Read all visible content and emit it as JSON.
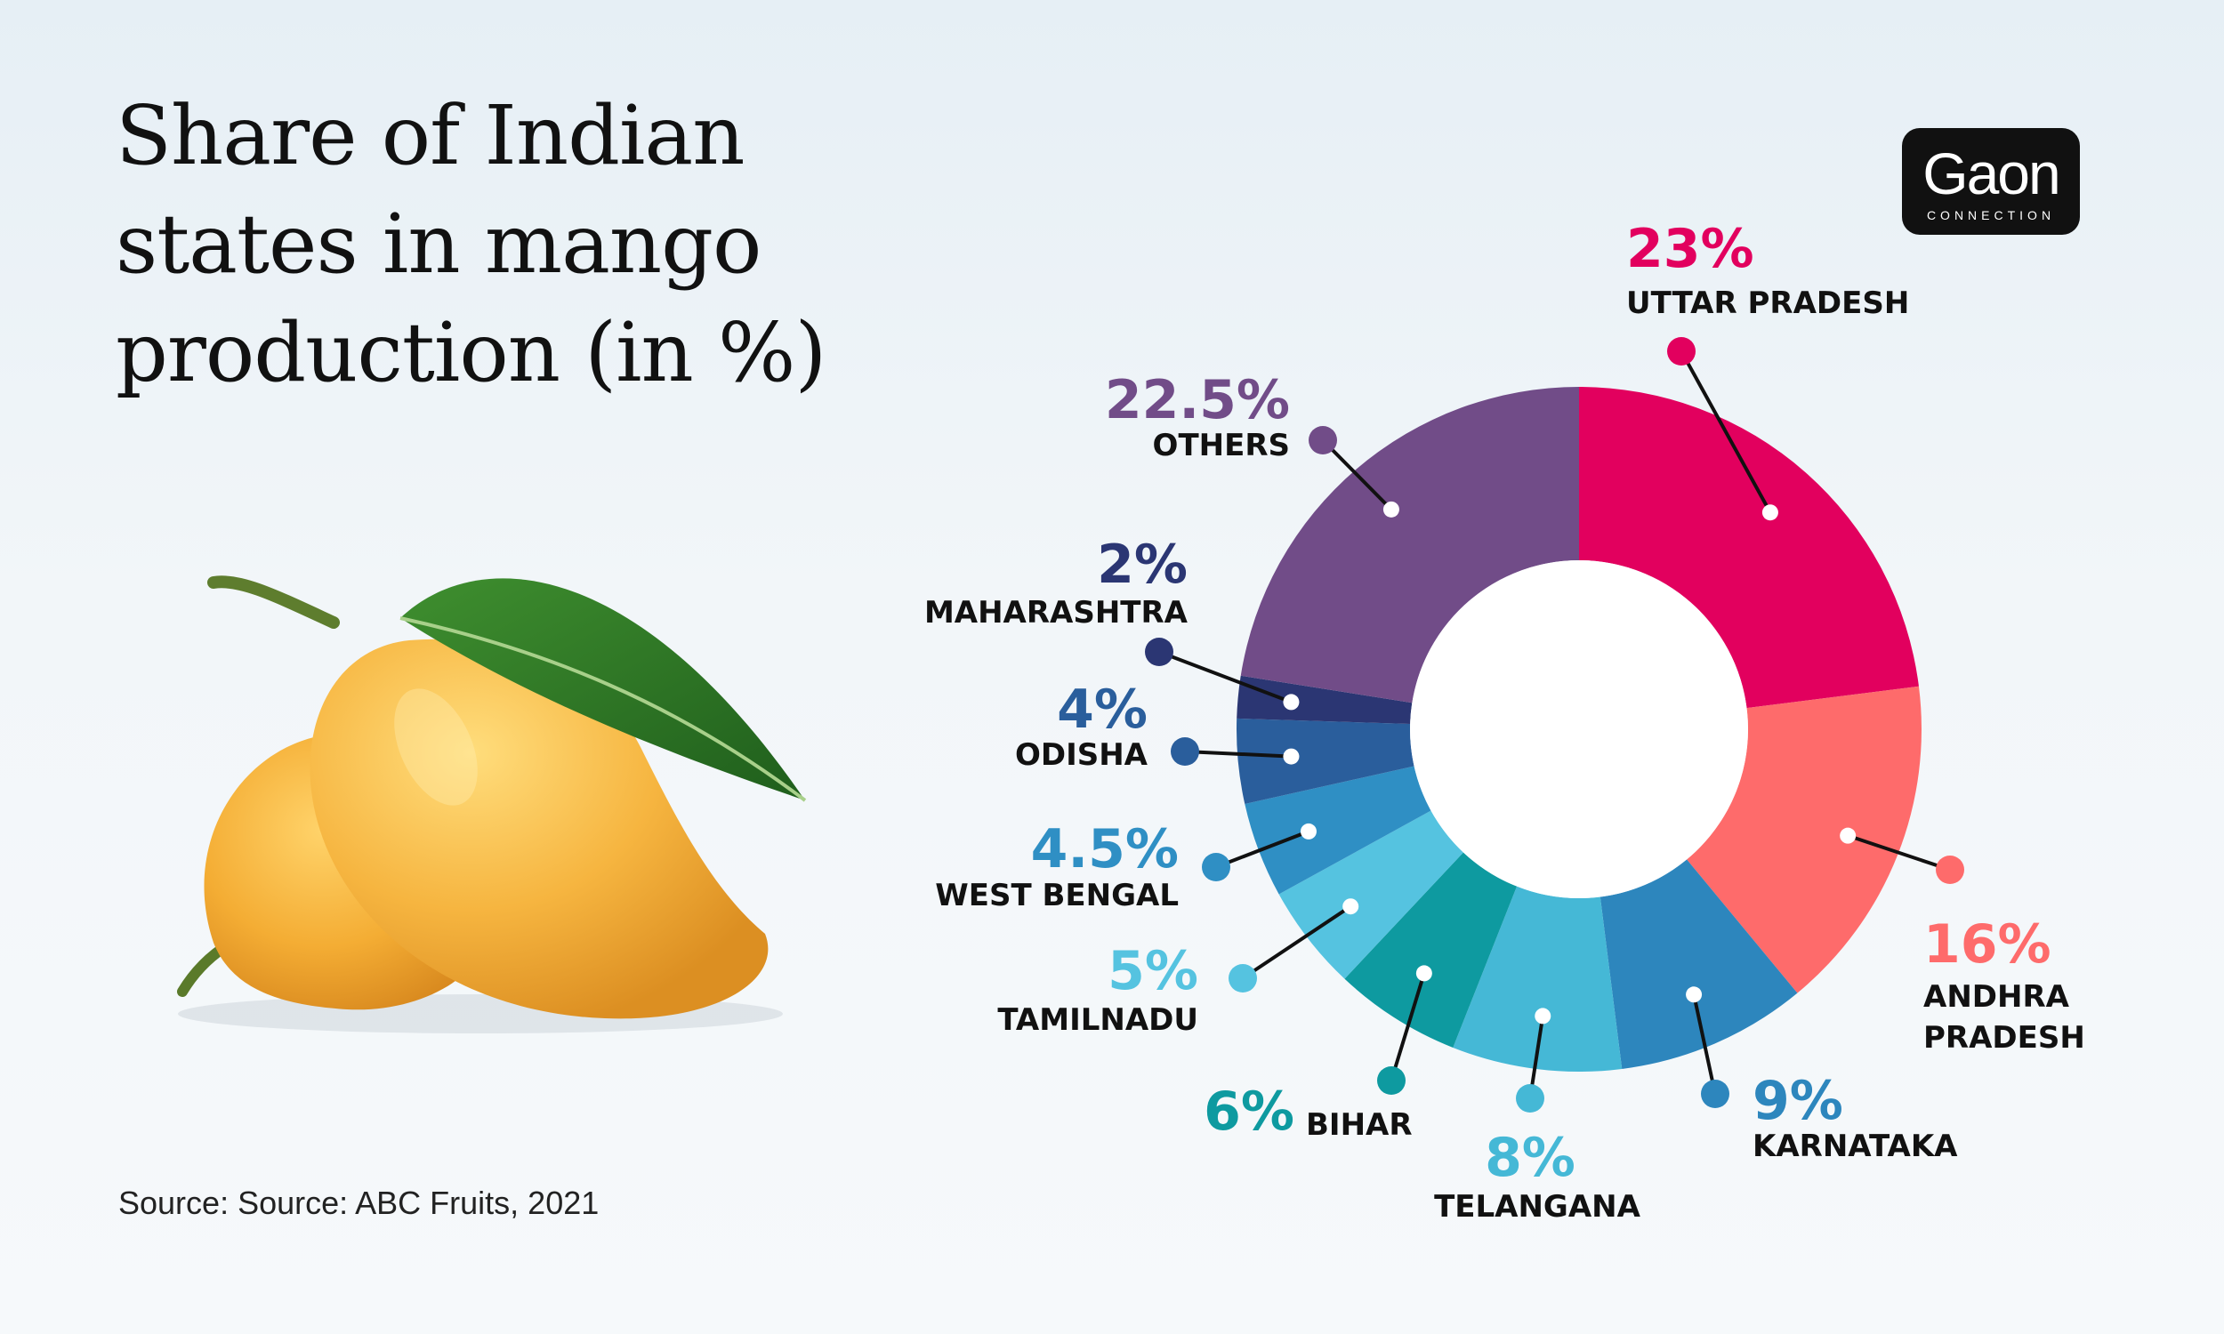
{
  "title_lines": [
    "Share of Indian",
    "states in mango",
    "production (in %)"
  ],
  "source": "Source: Source: ABC Fruits, 2021",
  "logo": {
    "word": "Gaon",
    "sub": "CONNECTION"
  },
  "chart_data": {
    "type": "pie",
    "variant": "donut",
    "title": "Share of Indian states in mango production (in %)",
    "unit": "%",
    "start": "top, clockwise",
    "slices": [
      {
        "label": "UTTAR PRADESH",
        "label_lines": [
          "UTTAR PRADESH"
        ],
        "value": 23,
        "pct_text": "23%",
        "color": "#e2005e",
        "label_color": "#111111"
      },
      {
        "label": "ANDHRA PRADESH",
        "label_lines": [
          "ANDHRA",
          "PRADESH"
        ],
        "value": 16,
        "pct_text": "16%",
        "color": "#fe6b6b",
        "label_color": "#111111"
      },
      {
        "label": "KARNATAKA",
        "label_lines": [
          "KARNATAKA"
        ],
        "value": 9,
        "pct_text": "9%",
        "color": "#2d86bd",
        "label_color": "#2d86bd"
      },
      {
        "label": "TELANGANA",
        "label_lines": [
          "TELANGANA"
        ],
        "value": 8,
        "pct_text": "8%",
        "color": "#45b8d6",
        "label_color": "#111111"
      },
      {
        "label": "BIHAR",
        "label_lines": [
          "BIHAR"
        ],
        "value": 6,
        "pct_text": "6%",
        "color": "#0e9aa0",
        "label_color": "#111111"
      },
      {
        "label": "TAMILNADU",
        "label_lines": [
          "TAMILNADU"
        ],
        "value": 5,
        "pct_text": "5%",
        "color": "#55c3e0",
        "label_color": "#111111"
      },
      {
        "label": "WEST BENGAL",
        "label_lines": [
          "WEST BENGAL"
        ],
        "value": 4.5,
        "pct_text": "4.5%",
        "color": "#2f8fc4",
        "label_color": "#111111"
      },
      {
        "label": "ODISHA",
        "label_lines": [
          "ODISHA"
        ],
        "value": 4,
        "pct_text": "4%",
        "color": "#2a5e9c",
        "label_color": "#111111"
      },
      {
        "label": "MAHARASHTRA",
        "label_lines": [
          "MAHARASHTRA"
        ],
        "value": 2,
        "pct_text": "2%",
        "color": "#2b3673",
        "label_color": "#111111"
      },
      {
        "label": "OTHERS",
        "label_lines": [
          "OTHERS"
        ],
        "value": 22.5,
        "pct_text": "22.5%",
        "color": "#714c88",
        "label_color": "#111111"
      }
    ]
  }
}
